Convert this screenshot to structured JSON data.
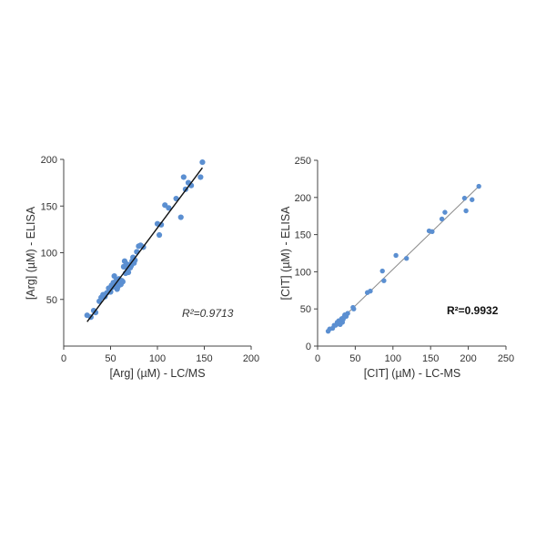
{
  "chart_data": [
    {
      "type": "scatter",
      "xlabel": "[Arg] (µM) - LC/MS",
      "ylabel": "[Arg] (µM) - ELISA",
      "annotation": "R²=0.9713",
      "xlim": [
        0,
        200
      ],
      "ylim": [
        0,
        200
      ],
      "xticks": [
        0,
        50,
        100,
        150,
        200
      ],
      "yticks": [
        50,
        100,
        150,
        200
      ],
      "grid": false,
      "point_color": "#5b8fd1",
      "fit_line": {
        "x": [
          25,
          148
        ],
        "y": [
          26,
          191
        ],
        "color": "#111111"
      },
      "x": [
        25,
        29,
        32,
        34,
        38,
        40,
        42,
        44,
        46,
        48,
        50,
        51,
        52,
        53,
        54,
        55,
        56,
        57,
        58,
        59,
        60,
        61,
        62,
        63,
        64,
        65,
        66,
        67,
        68,
        69,
        70,
        71,
        72,
        73,
        74,
        75,
        76,
        78,
        80,
        82,
        85,
        100,
        102,
        104,
        108,
        112,
        120,
        125,
        128,
        130,
        133,
        136,
        146,
        148
      ],
      "y": [
        33,
        31,
        38,
        36,
        48,
        52,
        55,
        53,
        57,
        62,
        58,
        65,
        63,
        68,
        75,
        66,
        70,
        61,
        64,
        72,
        67,
        66,
        70,
        69,
        85,
        91,
        78,
        88,
        83,
        79,
        87,
        84,
        86,
        91,
        95,
        89,
        92,
        101,
        107,
        108,
        106,
        131,
        119,
        130,
        151,
        148,
        158,
        138,
        181,
        168,
        175,
        172,
        181,
        197
      ]
    },
    {
      "type": "scatter",
      "xlabel": "[CIT] (µM) - LC-MS",
      "ylabel": "[CIT] (µM) - ELISA",
      "annotation": "R²=0.9932",
      "xlim": [
        0,
        250
      ],
      "ylim": [
        0,
        250
      ],
      "xticks": [
        0,
        50,
        100,
        150,
        200,
        250
      ],
      "yticks": [
        0,
        50,
        100,
        150,
        200,
        250
      ],
      "grid": false,
      "point_color": "#5b8fd1",
      "fit_line": {
        "x": [
          14,
          214
        ],
        "y": [
          19,
          215
        ],
        "color": "#888888"
      },
      "x": [
        14,
        16,
        20,
        22,
        24,
        26,
        27,
        28,
        30,
        31,
        32,
        33,
        34,
        35,
        36,
        38,
        40,
        47,
        48,
        66,
        70,
        86,
        88,
        104,
        118,
        148,
        152,
        165,
        169,
        195,
        197,
        205,
        214
      ],
      "y": [
        20,
        23,
        24,
        28,
        28,
        32,
        30,
        34,
        29,
        33,
        37,
        32,
        36,
        39,
        42,
        40,
        44,
        52,
        50,
        72,
        74,
        101,
        88,
        122,
        118,
        155,
        154,
        171,
        180,
        199,
        182,
        197,
        215
      ]
    }
  ]
}
